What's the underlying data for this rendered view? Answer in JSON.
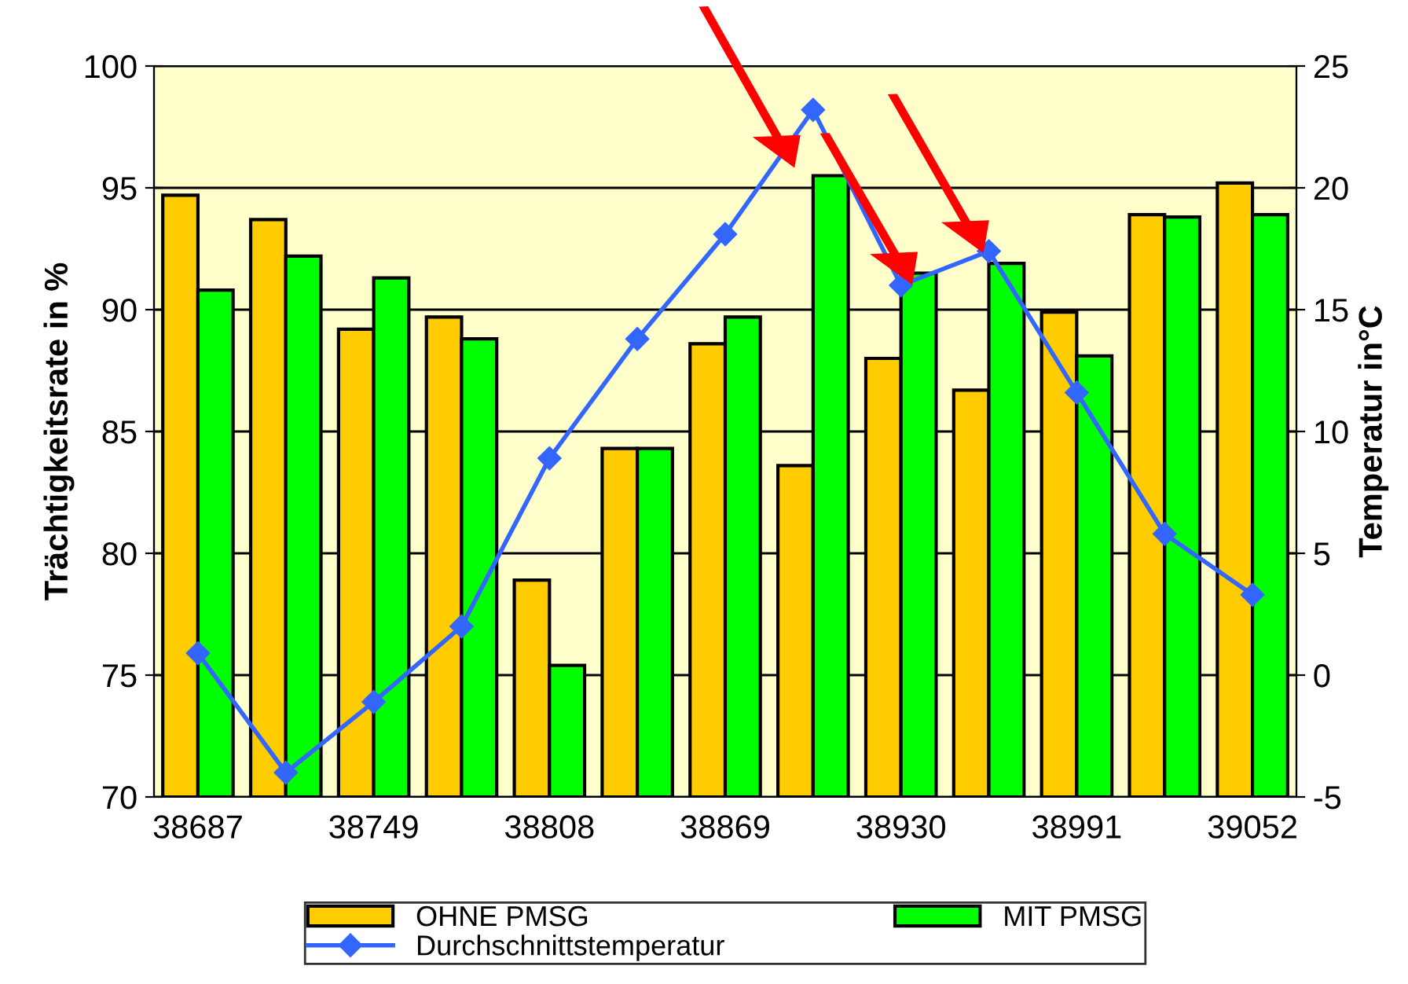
{
  "chart_data": {
    "type": "bar",
    "xlabel": null,
    "ylabel": "Trächtigkeitsrate in %",
    "y2label": "Temperatur in°C",
    "categories": [
      "38687",
      null,
      "38749",
      null,
      "38808",
      null,
      "38869",
      null,
      "38930",
      null,
      "38991",
      null,
      "39052"
    ],
    "series": [
      {
        "name": "OHNE PMSG",
        "color": "#ffcc00",
        "values": [
          94.7,
          93.7,
          89.2,
          89.7,
          78.9,
          84.3,
          88.6,
          83.6,
          88.0,
          86.7,
          89.9,
          93.9,
          95.2
        ]
      },
      {
        "name": "MIT PMSG",
        "color": "#00ff00",
        "values": [
          90.8,
          92.2,
          91.3,
          88.8,
          75.4,
          84.3,
          89.7,
          95.5,
          91.5,
          91.9,
          88.1,
          93.8,
          93.9
        ]
      },
      {
        "name": "Durchschnittstemperatur",
        "type": "line",
        "axis": "y2",
        "color": "#3366ff",
        "marker": "diamond",
        "values": [
          0.9,
          -4.0,
          -1.1,
          2.0,
          8.9,
          13.8,
          18.1,
          23.2,
          16.0,
          17.4,
          11.6,
          5.8,
          3.3
        ]
      }
    ],
    "ylim": [
      70,
      100
    ],
    "yticks": [
      70,
      75,
      80,
      85,
      90,
      95,
      100
    ],
    "y2lim": [
      -5,
      25
    ],
    "y2ticks": [
      -5,
      0,
      5,
      10,
      15,
      20,
      25
    ],
    "grid": "y",
    "legend": "bottom"
  }
}
